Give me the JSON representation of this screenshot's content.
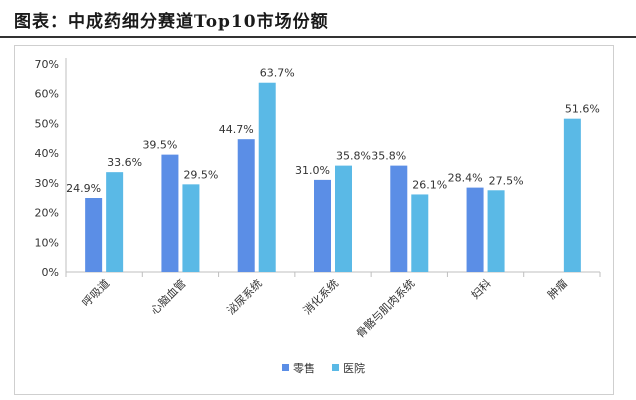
{
  "header": {
    "title": "图表：中成药细分赛道Top10市场份额"
  },
  "chart_data": {
    "type": "bar",
    "categories": [
      "呼吸道",
      "心脑血管",
      "泌尿系统",
      "消化系统",
      "骨骼与肌肉系统",
      "妇科",
      "肿瘤"
    ],
    "series": [
      {
        "name": "零售",
        "values": [
          24.9,
          39.5,
          44.7,
          31.0,
          35.8,
          28.4,
          null
        ],
        "labels": [
          "24.9%",
          "39.5%",
          "44.7%",
          "31.0%",
          "35.8%",
          "28.4%",
          ""
        ]
      },
      {
        "name": "医院",
        "values": [
          33.6,
          29.5,
          63.7,
          35.8,
          26.1,
          27.5,
          51.6
        ],
        "labels": [
          "33.6%",
          "29.5%",
          "63.7%",
          "35.8%",
          "26.1%",
          "27.5%",
          "51.6%"
        ]
      }
    ],
    "ylim": [
      0,
      70
    ],
    "yticks": [
      "0%",
      "10%",
      "20%",
      "30%",
      "40%",
      "50%",
      "60%",
      "70%"
    ],
    "grid": false,
    "legend_position": "bottom",
    "colors": {
      "零售": "#5b8ee6",
      "医院": "#5ab9e6",
      "axis": "#bfbfbf",
      "text": "#333333"
    }
  }
}
